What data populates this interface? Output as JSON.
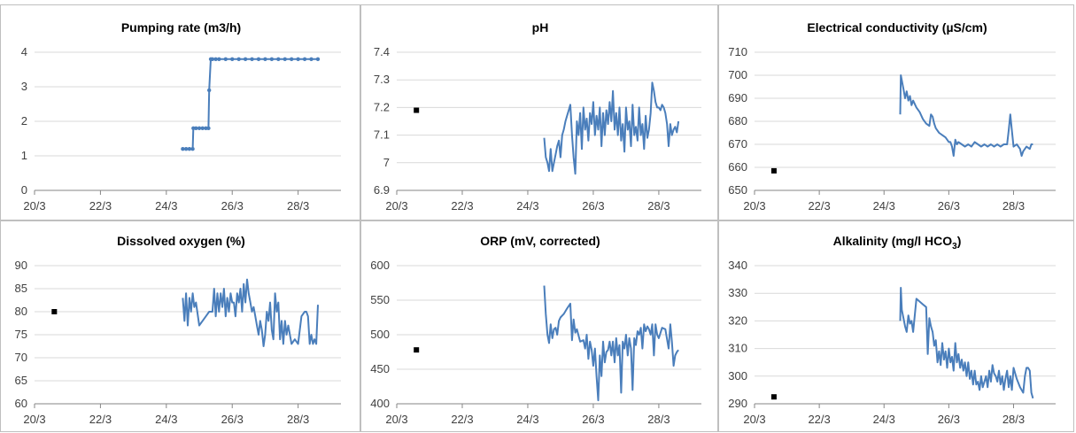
{
  "chart_data": [
    {
      "type": "line",
      "title": "Pumping rate (m3/h)",
      "ylim": [
        0,
        4
      ],
      "yticks": [
        0,
        1,
        2,
        3,
        4
      ],
      "ytick_labels": [
        "0",
        "1",
        "2",
        "3",
        "4"
      ],
      "xlim": [
        20,
        29.3
      ],
      "xticks": [
        20,
        22,
        24,
        26,
        28
      ],
      "xtick_labels": [
        "20/3",
        "22/3",
        "24/3",
        "26/3",
        "28/3"
      ],
      "grid": true,
      "series": [
        {
          "color": "#4a7ebb",
          "marker": "circle",
          "x": [
            24.5,
            24.6,
            24.7,
            24.8,
            24.82,
            24.9,
            25.0,
            25.1,
            25.2,
            25.28,
            25.3,
            25.35,
            25.4,
            25.5,
            25.6,
            25.8,
            26.0,
            26.2,
            26.4,
            26.6,
            26.8,
            27.0,
            27.2,
            27.4,
            27.6,
            27.8,
            28.0,
            28.2,
            28.4,
            28.6
          ],
          "y": [
            1.2,
            1.2,
            1.2,
            1.2,
            1.8,
            1.8,
            1.8,
            1.8,
            1.8,
            1.8,
            2.9,
            3.8,
            3.8,
            3.8,
            3.8,
            3.8,
            3.8,
            3.8,
            3.8,
            3.8,
            3.8,
            3.8,
            3.8,
            3.8,
            3.8,
            3.8,
            3.8,
            3.8,
            3.8,
            3.8
          ]
        }
      ]
    },
    {
      "type": "line",
      "title": "pH",
      "ylim": [
        6.9,
        7.4
      ],
      "yticks": [
        6.9,
        7.0,
        7.1,
        7.2,
        7.3,
        7.4
      ],
      "ytick_labels": [
        "6.9",
        "7",
        "7.1",
        "7.2",
        "7.3",
        "7.4"
      ],
      "xlim": [
        20,
        29.3
      ],
      "xticks": [
        20,
        22,
        24,
        26,
        28
      ],
      "xtick_labels": [
        "20/3",
        "22/3",
        "24/3",
        "26/3",
        "28/3"
      ],
      "grid": true,
      "points": [
        {
          "x": 20.6,
          "y": 7.19
        }
      ],
      "series": [
        {
          "color": "#4a7ebb",
          "x": [
            24.5,
            24.55,
            24.6,
            24.65,
            24.7,
            24.75,
            24.8,
            24.85,
            24.9,
            24.95,
            25.0,
            25.05,
            25.1,
            25.15,
            25.2,
            25.25,
            25.3,
            25.35,
            25.4,
            25.45,
            25.5,
            25.55,
            25.6,
            25.65,
            25.7,
            25.75,
            25.8,
            25.85,
            25.9,
            25.95,
            26.0,
            26.05,
            26.1,
            26.15,
            26.2,
            26.25,
            26.3,
            26.35,
            26.4,
            26.45,
            26.5,
            26.55,
            26.6,
            26.65,
            26.7,
            26.75,
            26.8,
            26.85,
            26.9,
            26.95,
            27.0,
            27.05,
            27.1,
            27.15,
            27.2,
            27.25,
            27.3,
            27.35,
            27.4,
            27.45,
            27.5,
            27.55,
            27.6,
            27.65,
            27.7,
            27.75,
            27.8,
            27.85,
            27.9,
            27.95,
            28.0,
            28.05,
            28.1,
            28.15,
            28.2,
            28.25,
            28.3,
            28.35,
            28.4,
            28.45,
            28.5,
            28.55,
            28.6
          ],
          "y": [
            7.09,
            7.02,
            7.0,
            6.97,
            7.05,
            6.97,
            7.0,
            7.03,
            7.06,
            7.08,
            7.02,
            7.1,
            7.12,
            7.15,
            7.17,
            7.19,
            7.21,
            7.1,
            7.02,
            6.96,
            7.15,
            7.1,
            7.18,
            7.05,
            7.2,
            7.12,
            7.16,
            7.08,
            7.18,
            7.14,
            7.22,
            7.1,
            7.17,
            7.12,
            7.2,
            7.06,
            7.18,
            7.1,
            7.19,
            7.14,
            7.22,
            7.15,
            7.26,
            7.12,
            7.18,
            7.1,
            7.2,
            7.08,
            7.14,
            7.04,
            7.2,
            7.12,
            7.15,
            7.06,
            7.21,
            7.1,
            7.13,
            7.08,
            7.2,
            7.1,
            7.14,
            7.05,
            7.17,
            7.09,
            7.12,
            7.18,
            7.29,
            7.26,
            7.22,
            7.2,
            7.2,
            7.19,
            7.21,
            7.2,
            7.18,
            7.14,
            7.06,
            7.14,
            7.1,
            7.12,
            7.13,
            7.11,
            7.15
          ]
        }
      ]
    },
    {
      "type": "line",
      "title": "Electrical conductivity (µS/cm)",
      "ylim": [
        650,
        710
      ],
      "yticks": [
        650,
        660,
        670,
        680,
        690,
        700,
        710
      ],
      "ytick_labels": [
        "650",
        "660",
        "670",
        "680",
        "690",
        "700",
        "710"
      ],
      "xlim": [
        20,
        29.3
      ],
      "xticks": [
        20,
        22,
        24,
        26,
        28
      ],
      "xtick_labels": [
        "20/3",
        "22/3",
        "24/3",
        "26/3",
        "28/3"
      ],
      "grid": true,
      "points": [
        {
          "x": 20.6,
          "y": 658.5
        }
      ],
      "series": [
        {
          "color": "#4a7ebb",
          "x": [
            24.5,
            24.52,
            24.56,
            24.6,
            24.65,
            24.7,
            24.75,
            24.8,
            24.85,
            24.9,
            25.0,
            25.1,
            25.2,
            25.3,
            25.4,
            25.45,
            25.5,
            25.55,
            25.6,
            25.7,
            25.8,
            25.9,
            26.0,
            26.05,
            26.1,
            26.15,
            26.2,
            26.25,
            26.3,
            26.4,
            26.5,
            26.6,
            26.7,
            26.8,
            26.9,
            27.0,
            27.1,
            27.2,
            27.3,
            27.4,
            27.5,
            27.6,
            27.7,
            27.8,
            27.85,
            27.9,
            27.95,
            28.0,
            28.1,
            28.2,
            28.25,
            28.3,
            28.4,
            28.5,
            28.55,
            28.6
          ],
          "y": [
            683,
            700,
            697,
            694,
            690,
            693,
            689,
            691,
            687,
            689,
            686,
            684,
            681,
            679,
            678,
            683,
            682,
            679,
            677,
            675,
            674,
            673,
            671,
            671,
            669,
            665,
            672,
            670,
            671,
            670,
            669,
            670,
            669,
            671,
            670,
            669,
            670,
            669,
            670,
            669,
            670,
            669,
            670,
            670,
            676,
            683,
            676,
            669,
            670,
            668,
            665,
            667,
            669,
            668,
            670,
            670
          ]
        }
      ]
    },
    {
      "type": "line",
      "title": "Dissolved oxygen (%)",
      "ylim": [
        60,
        90
      ],
      "yticks": [
        60,
        65,
        70,
        75,
        80,
        85,
        90
      ],
      "ytick_labels": [
        "60",
        "65",
        "70",
        "75",
        "80",
        "85",
        "90"
      ],
      "xlim": [
        20,
        29.3
      ],
      "xticks": [
        20,
        22,
        24,
        26,
        28
      ],
      "xtick_labels": [
        "20/3",
        "22/3",
        "24/3",
        "26/3",
        "28/3"
      ],
      "grid": true,
      "points": [
        {
          "x": 20.6,
          "y": 80
        }
      ],
      "series": [
        {
          "color": "#4a7ebb",
          "x": [
            24.5,
            24.55,
            24.6,
            24.65,
            24.7,
            24.75,
            24.8,
            24.85,
            24.9,
            25.0,
            25.1,
            25.2,
            25.3,
            25.4,
            25.45,
            25.5,
            25.55,
            25.6,
            25.65,
            25.7,
            25.75,
            25.8,
            25.85,
            25.9,
            25.95,
            26.0,
            26.05,
            26.1,
            26.15,
            26.2,
            26.25,
            26.3,
            26.35,
            26.4,
            26.45,
            26.5,
            26.55,
            26.6,
            26.65,
            26.7,
            26.75,
            26.8,
            26.85,
            26.9,
            26.95,
            27.0,
            27.05,
            27.1,
            27.15,
            27.2,
            27.25,
            27.3,
            27.35,
            27.4,
            27.45,
            27.5,
            27.55,
            27.6,
            27.65,
            27.7,
            27.8,
            27.9,
            28.0,
            28.1,
            28.2,
            28.25,
            28.3,
            28.35,
            28.4,
            28.45,
            28.5,
            28.55,
            28.6
          ],
          "y": [
            83,
            78,
            84,
            77,
            83,
            80,
            84,
            81,
            82,
            77,
            78,
            79,
            80,
            80,
            85,
            79,
            84,
            80,
            84,
            81,
            85,
            79,
            83,
            80,
            84,
            82,
            82,
            79,
            84,
            82,
            85,
            80,
            86,
            82,
            87,
            84,
            82,
            80,
            81,
            79,
            77,
            75,
            78,
            76,
            72.5,
            75,
            80,
            78,
            82,
            76,
            74,
            84,
            80,
            82,
            74,
            78,
            73,
            78,
            75,
            77,
            73,
            74,
            73,
            79,
            80,
            80,
            79,
            73,
            75,
            73,
            74,
            73,
            81.5
          ]
        }
      ]
    },
    {
      "type": "line",
      "title": "ORP (mV, corrected)",
      "ylim": [
        400,
        600
      ],
      "yticks": [
        400,
        450,
        500,
        550,
        600
      ],
      "ytick_labels": [
        "400",
        "450",
        "500",
        "550",
        "600"
      ],
      "xlim": [
        20,
        29.3
      ],
      "xticks": [
        20,
        22,
        24,
        26,
        28
      ],
      "xtick_labels": [
        "20/3",
        "22/3",
        "24/3",
        "26/3",
        "28/3"
      ],
      "grid": true,
      "points": [
        {
          "x": 20.6,
          "y": 478
        }
      ],
      "series": [
        {
          "color": "#4a7ebb",
          "x": [
            24.5,
            24.55,
            24.6,
            24.65,
            24.7,
            24.75,
            24.8,
            24.85,
            24.9,
            24.95,
            25.0,
            25.1,
            25.2,
            25.3,
            25.35,
            25.4,
            25.45,
            25.5,
            25.6,
            25.7,
            25.75,
            25.8,
            25.85,
            25.9,
            25.95,
            26.0,
            26.05,
            26.1,
            26.15,
            26.2,
            26.25,
            26.3,
            26.35,
            26.4,
            26.45,
            26.5,
            26.55,
            26.6,
            26.65,
            26.7,
            26.75,
            26.8,
            26.85,
            26.9,
            26.95,
            27.0,
            27.05,
            27.1,
            27.15,
            27.2,
            27.25,
            27.3,
            27.35,
            27.4,
            27.45,
            27.5,
            27.55,
            27.6,
            27.65,
            27.7,
            27.75,
            27.8,
            27.85,
            27.9,
            27.95,
            28.0,
            28.1,
            28.2,
            28.3,
            28.35,
            28.4,
            28.45,
            28.5,
            28.55,
            28.6
          ],
          "y": [
            571,
            530,
            500,
            488,
            515,
            495,
            508,
            510,
            500,
            520,
            525,
            530,
            538,
            545,
            492,
            522,
            503,
            508,
            490,
            492,
            480,
            500,
            465,
            490,
            478,
            455,
            480,
            440,
            405,
            470,
            440,
            490,
            460,
            475,
            478,
            490,
            470,
            490,
            460,
            495,
            470,
            485,
            416,
            490,
            480,
            500,
            470,
            495,
            480,
            420,
            495,
            485,
            505,
            500,
            510,
            480,
            515,
            505,
            512,
            508,
            500,
            515,
            470,
            515,
            500,
            495,
            510,
            508,
            480,
            515,
            490,
            455,
            470,
            475,
            478
          ]
        }
      ]
    },
    {
      "type": "line",
      "title": "Alkalinity (mg/l HCO3)",
      "ylim": [
        290,
        340
      ],
      "yticks": [
        290,
        300,
        310,
        320,
        330,
        340
      ],
      "ytick_labels": [
        "290",
        "300",
        "310",
        "320",
        "330",
        "340"
      ],
      "xlim": [
        20,
        29.3
      ],
      "xticks": [
        20,
        22,
        24,
        26,
        28
      ],
      "xtick_labels": [
        "20/3",
        "22/3",
        "24/3",
        "26/3",
        "28/3"
      ],
      "grid": true,
      "points": [
        {
          "x": 20.6,
          "y": 292.5
        }
      ],
      "series": [
        {
          "color": "#4a7ebb",
          "x": [
            24.5,
            24.52,
            24.55,
            24.6,
            24.65,
            24.7,
            24.75,
            24.8,
            24.85,
            24.9,
            25.0,
            25.1,
            25.2,
            25.3,
            25.35,
            25.4,
            25.45,
            25.5,
            25.55,
            25.6,
            25.65,
            25.7,
            25.75,
            25.8,
            25.85,
            25.9,
            25.95,
            26.0,
            26.05,
            26.1,
            26.15,
            26.2,
            26.25,
            26.3,
            26.35,
            26.4,
            26.45,
            26.5,
            26.55,
            26.6,
            26.65,
            26.7,
            26.75,
            26.8,
            26.85,
            26.9,
            26.95,
            27.0,
            27.05,
            27.1,
            27.15,
            27.2,
            27.25,
            27.3,
            27.35,
            27.4,
            27.45,
            27.5,
            27.55,
            27.6,
            27.65,
            27.7,
            27.75,
            27.8,
            27.85,
            27.9,
            27.95,
            28.0,
            28.1,
            28.2,
            28.3,
            28.35,
            28.4,
            28.45,
            28.5,
            28.55,
            28.6
          ],
          "y": [
            320,
            332,
            324,
            321,
            318,
            316,
            322,
            319,
            320,
            316,
            328,
            327,
            326,
            325,
            308,
            321,
            318,
            316,
            311,
            313,
            305,
            309,
            304,
            312,
            306,
            309,
            303,
            310,
            305,
            307,
            302,
            312,
            305,
            308,
            303,
            306,
            302,
            305,
            300,
            305,
            299,
            302,
            297,
            302,
            297,
            298,
            295,
            300,
            296,
            298,
            300,
            296,
            302,
            298,
            304,
            301,
            300,
            298,
            302,
            297,
            300,
            295,
            299,
            302,
            296,
            300,
            295,
            303,
            299,
            296,
            294,
            300,
            303,
            303,
            302,
            294,
            292
          ]
        }
      ]
    }
  ],
  "alkalinity_subscript": "3"
}
